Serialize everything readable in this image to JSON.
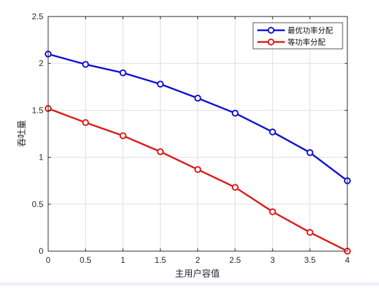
{
  "chart_data": {
    "type": "line",
    "title": "",
    "xlabel": "主用户容值",
    "ylabel": "吞吐量",
    "xlim": [
      0,
      4
    ],
    "ylim": [
      0,
      2.5
    ],
    "x_ticks": [
      0,
      0.5,
      1,
      1.5,
      2,
      2.5,
      3,
      3.5,
      4
    ],
    "x_tick_labels": [
      "0",
      "0.5",
      "1",
      "1.5",
      "2",
      "2.5",
      "3",
      "3.5",
      "4"
    ],
    "y_ticks": [
      0,
      0.5,
      1,
      1.5,
      2,
      2.5
    ],
    "y_tick_labels": [
      "0",
      "0.5",
      "1",
      "1.5",
      "2",
      "2.5"
    ],
    "grid": true,
    "legend_position": "top-right",
    "x": [
      0,
      0.5,
      1,
      1.5,
      2,
      2.5,
      3,
      3.5,
      4
    ],
    "series": [
      {
        "name": "最优功率分配",
        "color": "#1010d8",
        "marker": "circle",
        "values": [
          2.1,
          1.99,
          1.9,
          1.78,
          1.63,
          1.47,
          1.27,
          1.05,
          0.75
        ]
      },
      {
        "name": "等功率分配",
        "color": "#e01818",
        "marker": "circle",
        "values": [
          1.52,
          1.37,
          1.23,
          1.06,
          0.87,
          0.68,
          0.42,
          0.2,
          0.0
        ]
      }
    ]
  }
}
